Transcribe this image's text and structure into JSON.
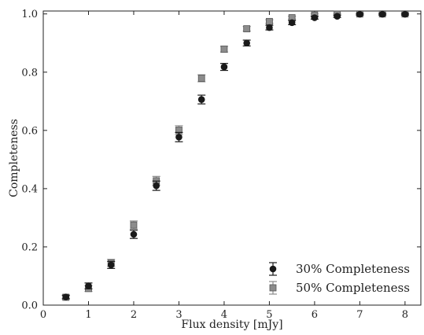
{
  "chart_data": {
    "type": "scatter",
    "title": "",
    "xlabel": "Flux density [mJy]",
    "ylabel": "Completeness",
    "xlim": [
      0,
      8.35
    ],
    "ylim": [
      0,
      1.01
    ],
    "xticks": [
      0,
      1,
      2,
      3,
      4,
      5,
      6,
      7,
      8
    ],
    "yticks": [
      0.0,
      0.2,
      0.4,
      0.6,
      0.8,
      1.0
    ],
    "grid": false,
    "legend_position": "bottom-right",
    "x": [
      0.5,
      1.0,
      1.5,
      2.0,
      2.5,
      3.0,
      3.5,
      4.0,
      4.5,
      5.0,
      5.5,
      6.0,
      6.5,
      7.0,
      7.5,
      8.0
    ],
    "series": [
      {
        "name": "30% Completeness",
        "marker": "circle",
        "color": "#1a1a1a",
        "values": [
          0.028,
          0.066,
          0.138,
          0.243,
          0.41,
          0.577,
          0.706,
          0.818,
          0.9,
          0.953,
          0.97,
          0.987,
          0.992,
          0.999,
          0.999,
          0.999
        ],
        "errors": [
          0.006,
          0.01,
          0.012,
          0.014,
          0.016,
          0.016,
          0.015,
          0.012,
          0.01,
          0.008,
          0.007,
          0.005,
          0.004,
          0.003,
          0.003,
          0.003
        ]
      },
      {
        "name": "50% Completeness",
        "marker": "square",
        "color": "#8c8c8c",
        "values": [
          0.027,
          0.057,
          0.145,
          0.275,
          0.427,
          0.601,
          0.779,
          0.879,
          0.949,
          0.974,
          0.987,
          0.996,
          0.999,
          1.0,
          1.0,
          1.0
        ],
        "errors": [
          0.006,
          0.01,
          0.012,
          0.014,
          0.015,
          0.015,
          0.012,
          0.01,
          0.008,
          0.006,
          0.005,
          0.004,
          0.003,
          0.002,
          0.002,
          0.002
        ]
      }
    ]
  }
}
